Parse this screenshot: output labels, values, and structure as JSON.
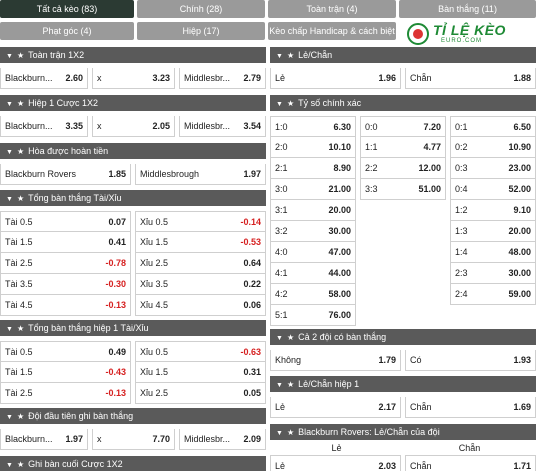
{
  "tabs": [
    {
      "label": "Tất cả kèo (83)",
      "active": true
    },
    {
      "label": "Chính (28)",
      "active": false
    },
    {
      "label": "Toàn trận (4)",
      "active": false
    },
    {
      "label": "Bàn thắng (11)",
      "active": false
    },
    {
      "label": "Phạt góc (4)",
      "active": false
    },
    {
      "label": "Hiệp (17)",
      "active": false
    },
    {
      "label": "Kèo chấp Handicap & cách biệt (3)",
      "active": false
    }
  ],
  "logo": {
    "brand": "TỈ LỆ KÈO",
    "sub": "EURO.COM"
  },
  "left": {
    "p1": {
      "title": "Toàn trận 1X2",
      "rows": [
        [
          [
            "Blackburn...",
            "2.60"
          ],
          [
            "x",
            "3.23"
          ],
          [
            "Middlesbr...",
            "2.79"
          ]
        ]
      ]
    },
    "p2": {
      "title": "Hiệp 1 Cược 1X2",
      "rows": [
        [
          [
            "Blackburn...",
            "3.35"
          ],
          [
            "x",
            "2.05"
          ],
          [
            "Middlesbr...",
            "3.54"
          ]
        ]
      ]
    },
    "p3": {
      "title": "Hòa được hoàn tiền",
      "rows": [
        [
          [
            "Blackburn Rovers",
            "1.85"
          ],
          [
            "Middlesbrough",
            "1.97"
          ]
        ]
      ]
    },
    "p4": {
      "title": "Tổng bàn thắng Tài/Xỉu",
      "rows": [
        [
          [
            "Tài 0.5",
            "0.07"
          ],
          [
            "Xỉu 0.5",
            "-0.14"
          ]
        ],
        [
          [
            "Tài 1.5",
            "0.41"
          ],
          [
            "Xỉu 1.5",
            "-0.53"
          ]
        ],
        [
          [
            "Tài 2.5",
            "-0.78"
          ],
          [
            "Xỉu 2.5",
            "0.64"
          ]
        ],
        [
          [
            "Tài 3.5",
            "-0.30"
          ],
          [
            "Xỉu 3.5",
            "0.22"
          ]
        ],
        [
          [
            "Tài 4.5",
            "-0.13"
          ],
          [
            "Xỉu 4.5",
            "0.06"
          ]
        ]
      ]
    },
    "p5": {
      "title": "Tổng bàn thắng hiệp 1 Tài/Xỉu",
      "rows": [
        [
          [
            "Tài 0.5",
            "0.49"
          ],
          [
            "Xỉu 0.5",
            "-0.63"
          ]
        ],
        [
          [
            "Tài 1.5",
            "-0.43"
          ],
          [
            "Xỉu 1.5",
            "0.31"
          ]
        ],
        [
          [
            "Tài 2.5",
            "-0.13"
          ],
          [
            "Xỉu 2.5",
            "0.05"
          ]
        ]
      ]
    },
    "p6": {
      "title": "Đội đầu tiên ghi bàn thắng",
      "rows": [
        [
          [
            "Blackburn...",
            "1.97"
          ],
          [
            "x",
            "7.70"
          ],
          [
            "Middlesbr...",
            "2.09"
          ]
        ]
      ]
    },
    "p7": {
      "title": "Ghi bàn cuối Cược 1X2"
    }
  },
  "right": {
    "r1": {
      "title": "Lẻ/Chẵn",
      "rows": [
        [
          [
            "Lẻ",
            "1.96"
          ],
          [
            "Chẵn",
            "1.88"
          ]
        ]
      ]
    },
    "r2": {
      "title": "Tỷ số chính xác",
      "rows": [
        [
          [
            "1:0",
            "6.30"
          ],
          [
            "0:0",
            "7.20"
          ],
          [
            "0:1",
            "6.50"
          ]
        ],
        [
          [
            "2:0",
            "10.10"
          ],
          [
            "1:1",
            "4.77"
          ],
          [
            "0:2",
            "10.90"
          ]
        ],
        [
          [
            "2:1",
            "8.90"
          ],
          [
            "2:2",
            "12.00"
          ],
          [
            "0:3",
            "23.00"
          ]
        ],
        [
          [
            "3:0",
            "21.00"
          ],
          [
            "3:3",
            "51.00"
          ],
          [
            "0:4",
            "52.00"
          ]
        ],
        [
          [
            "3:1",
            "20.00"
          ],
          null,
          [
            "1:2",
            "9.10"
          ]
        ],
        [
          [
            "3:2",
            "30.00"
          ],
          null,
          [
            "1:3",
            "20.00"
          ]
        ],
        [
          [
            "4:0",
            "47.00"
          ],
          null,
          [
            "1:4",
            "48.00"
          ]
        ],
        [
          [
            "4:1",
            "44.00"
          ],
          null,
          [
            "2:3",
            "30.00"
          ]
        ],
        [
          [
            "4:2",
            "58.00"
          ],
          null,
          [
            "2:4",
            "59.00"
          ]
        ],
        [
          [
            "5:1",
            "76.00"
          ],
          null,
          null
        ]
      ]
    },
    "r3": {
      "title": "Cả 2 đội có bàn thắng",
      "rows": [
        [
          [
            "Không",
            "1.79"
          ],
          [
            "Có",
            "1.93"
          ]
        ]
      ]
    },
    "r4": {
      "title": "Lẻ/Chẵn hiệp 1",
      "rows": [
        [
          [
            "Lẻ",
            "2.17"
          ],
          [
            "Chẵn",
            "1.69"
          ]
        ]
      ]
    },
    "r5": {
      "title": "Blackburn Rovers: Lẻ/Chẵn của đội",
      "col_headers": [
        "Lẻ",
        "Chẵn"
      ],
      "rows": [
        [
          [
            "Lẻ",
            "2.03"
          ],
          [
            "Chẵn",
            "1.71"
          ]
        ]
      ]
    }
  }
}
